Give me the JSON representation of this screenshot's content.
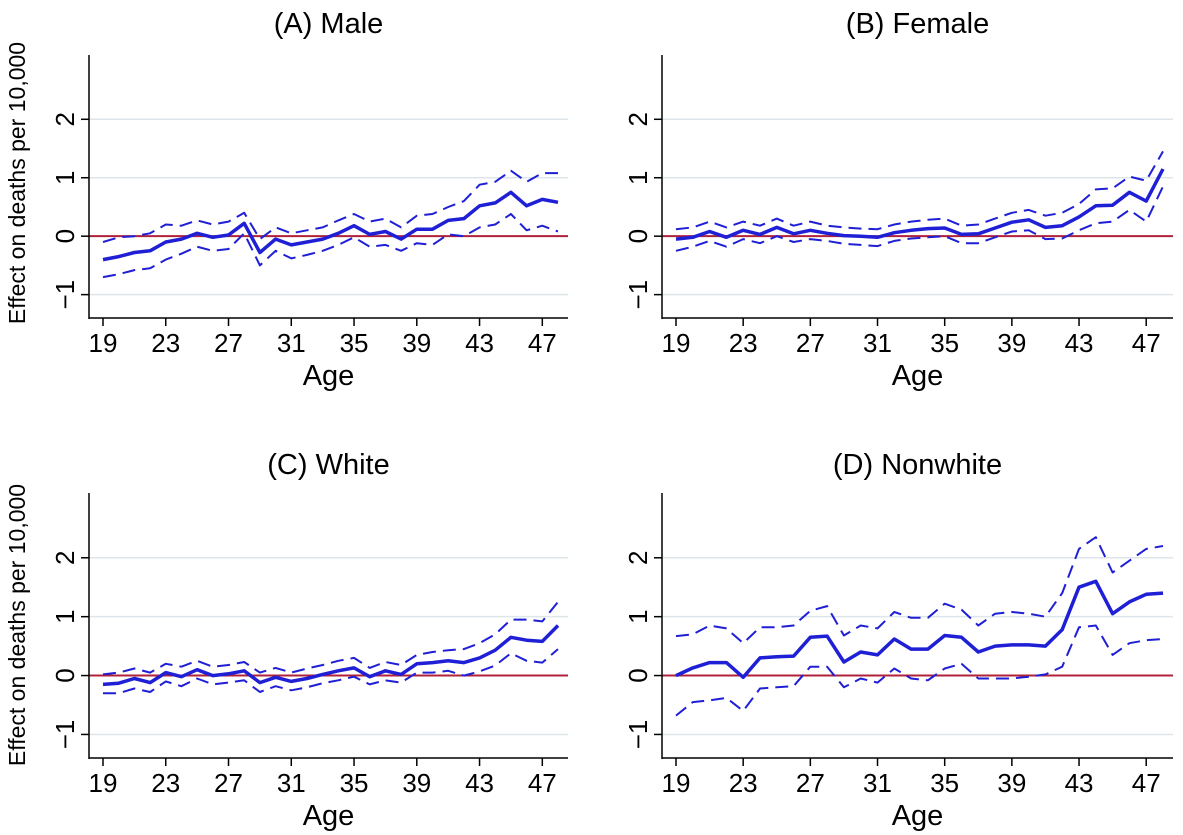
{
  "figure": {
    "ylabel": "Effect on deaths per 10,000",
    "colors": {
      "series": "#1f1fd6",
      "zero_line": "#b0213a",
      "grid": "#dde6ea",
      "axis": "#000000"
    }
  },
  "chart_data": [
    {
      "type": "line",
      "title": "(A) Male",
      "xlabel": "Age",
      "ylabel": "Effect on deaths per 10,000",
      "xlim": [
        19,
        48
      ],
      "ylim": [
        -1.4,
        3.1
      ],
      "xticks": [
        19,
        23,
        27,
        31,
        35,
        39,
        43,
        47
      ],
      "yticks": [
        -1,
        0,
        1,
        2
      ],
      "grid": true,
      "zero_line": 0,
      "x": [
        19,
        20,
        21,
        22,
        23,
        24,
        25,
        26,
        27,
        28,
        29,
        30,
        31,
        32,
        33,
        34,
        35,
        36,
        37,
        38,
        39,
        40,
        41,
        42,
        43,
        44,
        45,
        46,
        47,
        48
      ],
      "series": [
        {
          "role": "estimate",
          "style": "solid",
          "values": [
            -0.4,
            -0.35,
            -0.28,
            -0.25,
            -0.1,
            -0.05,
            0.05,
            -0.02,
            0.02,
            0.22,
            -0.28,
            -0.05,
            -0.15,
            -0.1,
            -0.05,
            0.05,
            0.18,
            0.03,
            0.08,
            -0.05,
            0.12,
            0.12,
            0.27,
            0.3,
            0.52,
            0.57,
            0.75,
            0.52,
            0.63,
            0.58
          ]
        },
        {
          "role": "upper",
          "style": "dashed",
          "values": [
            -0.1,
            -0.02,
            0.0,
            0.05,
            0.2,
            0.18,
            0.27,
            0.2,
            0.25,
            0.4,
            -0.05,
            0.15,
            0.05,
            0.1,
            0.15,
            0.27,
            0.38,
            0.25,
            0.3,
            0.15,
            0.35,
            0.38,
            0.5,
            0.6,
            0.88,
            0.93,
            1.12,
            0.93,
            1.08,
            1.08
          ]
        },
        {
          "role": "lower",
          "style": "dashed",
          "values": [
            -0.7,
            -0.65,
            -0.58,
            -0.55,
            -0.4,
            -0.3,
            -0.18,
            -0.25,
            -0.22,
            0.05,
            -0.5,
            -0.25,
            -0.38,
            -0.32,
            -0.25,
            -0.15,
            -0.02,
            -0.18,
            -0.15,
            -0.25,
            -0.12,
            -0.15,
            0.03,
            0.0,
            0.15,
            0.2,
            0.38,
            0.1,
            0.18,
            0.08
          ]
        }
      ]
    },
    {
      "type": "line",
      "title": "(B) Female",
      "xlabel": "Age",
      "xlim": [
        19,
        48
      ],
      "ylim": [
        -1.4,
        3.1
      ],
      "xticks": [
        19,
        23,
        27,
        31,
        35,
        39,
        43,
        47
      ],
      "yticks": [
        -1,
        0,
        1,
        2
      ],
      "grid": true,
      "zero_line": 0,
      "x": [
        19,
        20,
        21,
        22,
        23,
        24,
        25,
        26,
        27,
        28,
        29,
        30,
        31,
        32,
        33,
        34,
        35,
        36,
        37,
        38,
        39,
        40,
        41,
        42,
        43,
        44,
        45,
        46,
        47,
        48
      ],
      "series": [
        {
          "role": "estimate",
          "style": "solid",
          "values": [
            -0.05,
            -0.02,
            0.08,
            -0.02,
            0.1,
            0.03,
            0.15,
            0.04,
            0.1,
            0.05,
            0.01,
            0.0,
            -0.02,
            0.06,
            0.1,
            0.13,
            0.14,
            0.03,
            0.04,
            0.14,
            0.24,
            0.28,
            0.15,
            0.18,
            0.33,
            0.52,
            0.53,
            0.75,
            0.6,
            1.15
          ]
        },
        {
          "role": "upper",
          "style": "dashed",
          "values": [
            0.12,
            0.15,
            0.25,
            0.15,
            0.25,
            0.18,
            0.3,
            0.18,
            0.25,
            0.18,
            0.15,
            0.13,
            0.12,
            0.2,
            0.25,
            0.28,
            0.3,
            0.18,
            0.2,
            0.3,
            0.4,
            0.45,
            0.35,
            0.4,
            0.55,
            0.8,
            0.82,
            1.02,
            0.95,
            1.45
          ]
        },
        {
          "role": "lower",
          "style": "dashed",
          "values": [
            -0.25,
            -0.18,
            -0.08,
            -0.18,
            -0.05,
            -0.12,
            0.0,
            -0.1,
            -0.05,
            -0.08,
            -0.13,
            -0.15,
            -0.17,
            -0.08,
            -0.04,
            -0.02,
            0.0,
            -0.12,
            -0.12,
            -0.02,
            0.08,
            0.1,
            -0.05,
            -0.04,
            0.1,
            0.22,
            0.25,
            0.45,
            0.25,
            0.85
          ]
        }
      ]
    },
    {
      "type": "line",
      "title": "(C) White",
      "xlabel": "Age",
      "ylabel": "Effect on deaths per 10,000",
      "xlim": [
        19,
        48
      ],
      "ylim": [
        -1.4,
        3.1
      ],
      "xticks": [
        19,
        23,
        27,
        31,
        35,
        39,
        43,
        47
      ],
      "yticks": [
        -1,
        0,
        1,
        2
      ],
      "grid": true,
      "zero_line": 0,
      "x": [
        19,
        20,
        21,
        22,
        23,
        24,
        25,
        26,
        27,
        28,
        29,
        30,
        31,
        32,
        33,
        34,
        35,
        36,
        37,
        38,
        39,
        40,
        41,
        42,
        43,
        44,
        45,
        46,
        47,
        48
      ],
      "series": [
        {
          "role": "estimate",
          "style": "solid",
          "values": [
            -0.15,
            -0.13,
            -0.05,
            -0.12,
            0.05,
            -0.02,
            0.1,
            0.0,
            0.03,
            0.08,
            -0.12,
            -0.03,
            -0.1,
            -0.05,
            0.02,
            0.08,
            0.13,
            -0.02,
            0.08,
            0.02,
            0.2,
            0.22,
            0.25,
            0.22,
            0.3,
            0.43,
            0.65,
            0.6,
            0.58,
            0.85
          ]
        },
        {
          "role": "upper",
          "style": "dashed",
          "values": [
            0.02,
            0.05,
            0.12,
            0.05,
            0.2,
            0.15,
            0.25,
            0.15,
            0.18,
            0.23,
            0.05,
            0.13,
            0.05,
            0.12,
            0.18,
            0.25,
            0.3,
            0.13,
            0.23,
            0.18,
            0.35,
            0.4,
            0.43,
            0.45,
            0.55,
            0.7,
            0.95,
            0.95,
            0.92,
            1.25
          ]
        },
        {
          "role": "lower",
          "style": "dashed",
          "values": [
            -0.3,
            -0.3,
            -0.22,
            -0.28,
            -0.1,
            -0.18,
            -0.05,
            -0.15,
            -0.12,
            -0.08,
            -0.28,
            -0.18,
            -0.25,
            -0.2,
            -0.13,
            -0.08,
            -0.02,
            -0.15,
            -0.08,
            -0.12,
            0.05,
            0.05,
            0.08,
            0.0,
            0.07,
            0.17,
            0.38,
            0.25,
            0.22,
            0.45
          ]
        }
      ]
    },
    {
      "type": "line",
      "title": "(D) Nonwhite",
      "xlabel": "Age",
      "xlim": [
        19,
        48
      ],
      "ylim": [
        -1.4,
        3.1
      ],
      "xticks": [
        19,
        23,
        27,
        31,
        35,
        39,
        43,
        47
      ],
      "yticks": [
        -1,
        0,
        1,
        2
      ],
      "grid": true,
      "zero_line": 0,
      "x": [
        19,
        20,
        21,
        22,
        23,
        24,
        25,
        26,
        27,
        28,
        29,
        30,
        31,
        32,
        33,
        34,
        35,
        36,
        37,
        38,
        39,
        40,
        41,
        42,
        43,
        44,
        45,
        46,
        47,
        48
      ],
      "series": [
        {
          "role": "estimate",
          "style": "solid",
          "values": [
            0.0,
            0.13,
            0.22,
            0.22,
            -0.03,
            0.3,
            0.32,
            0.33,
            0.65,
            0.67,
            0.23,
            0.4,
            0.35,
            0.62,
            0.45,
            0.45,
            0.68,
            0.65,
            0.4,
            0.5,
            0.52,
            0.52,
            0.5,
            0.78,
            1.5,
            1.6,
            1.05,
            1.25,
            1.38,
            1.4
          ]
        },
        {
          "role": "upper",
          "style": "dashed",
          "values": [
            0.67,
            0.7,
            0.85,
            0.8,
            0.55,
            0.82,
            0.82,
            0.85,
            1.1,
            1.18,
            0.68,
            0.85,
            0.8,
            1.08,
            0.98,
            0.98,
            1.22,
            1.12,
            0.85,
            1.05,
            1.08,
            1.05,
            1.0,
            1.4,
            2.15,
            2.35,
            1.75,
            1.95,
            2.15,
            2.2
          ]
        },
        {
          "role": "lower",
          "style": "dashed",
          "values": [
            -0.68,
            -0.45,
            -0.42,
            -0.38,
            -0.6,
            -0.22,
            -0.2,
            -0.18,
            0.15,
            0.15,
            -0.2,
            -0.05,
            -0.12,
            0.12,
            -0.05,
            -0.08,
            0.12,
            0.2,
            -0.05,
            -0.05,
            -0.05,
            -0.02,
            0.02,
            0.15,
            0.82,
            0.85,
            0.35,
            0.55,
            0.6,
            0.62
          ]
        }
      ]
    }
  ]
}
